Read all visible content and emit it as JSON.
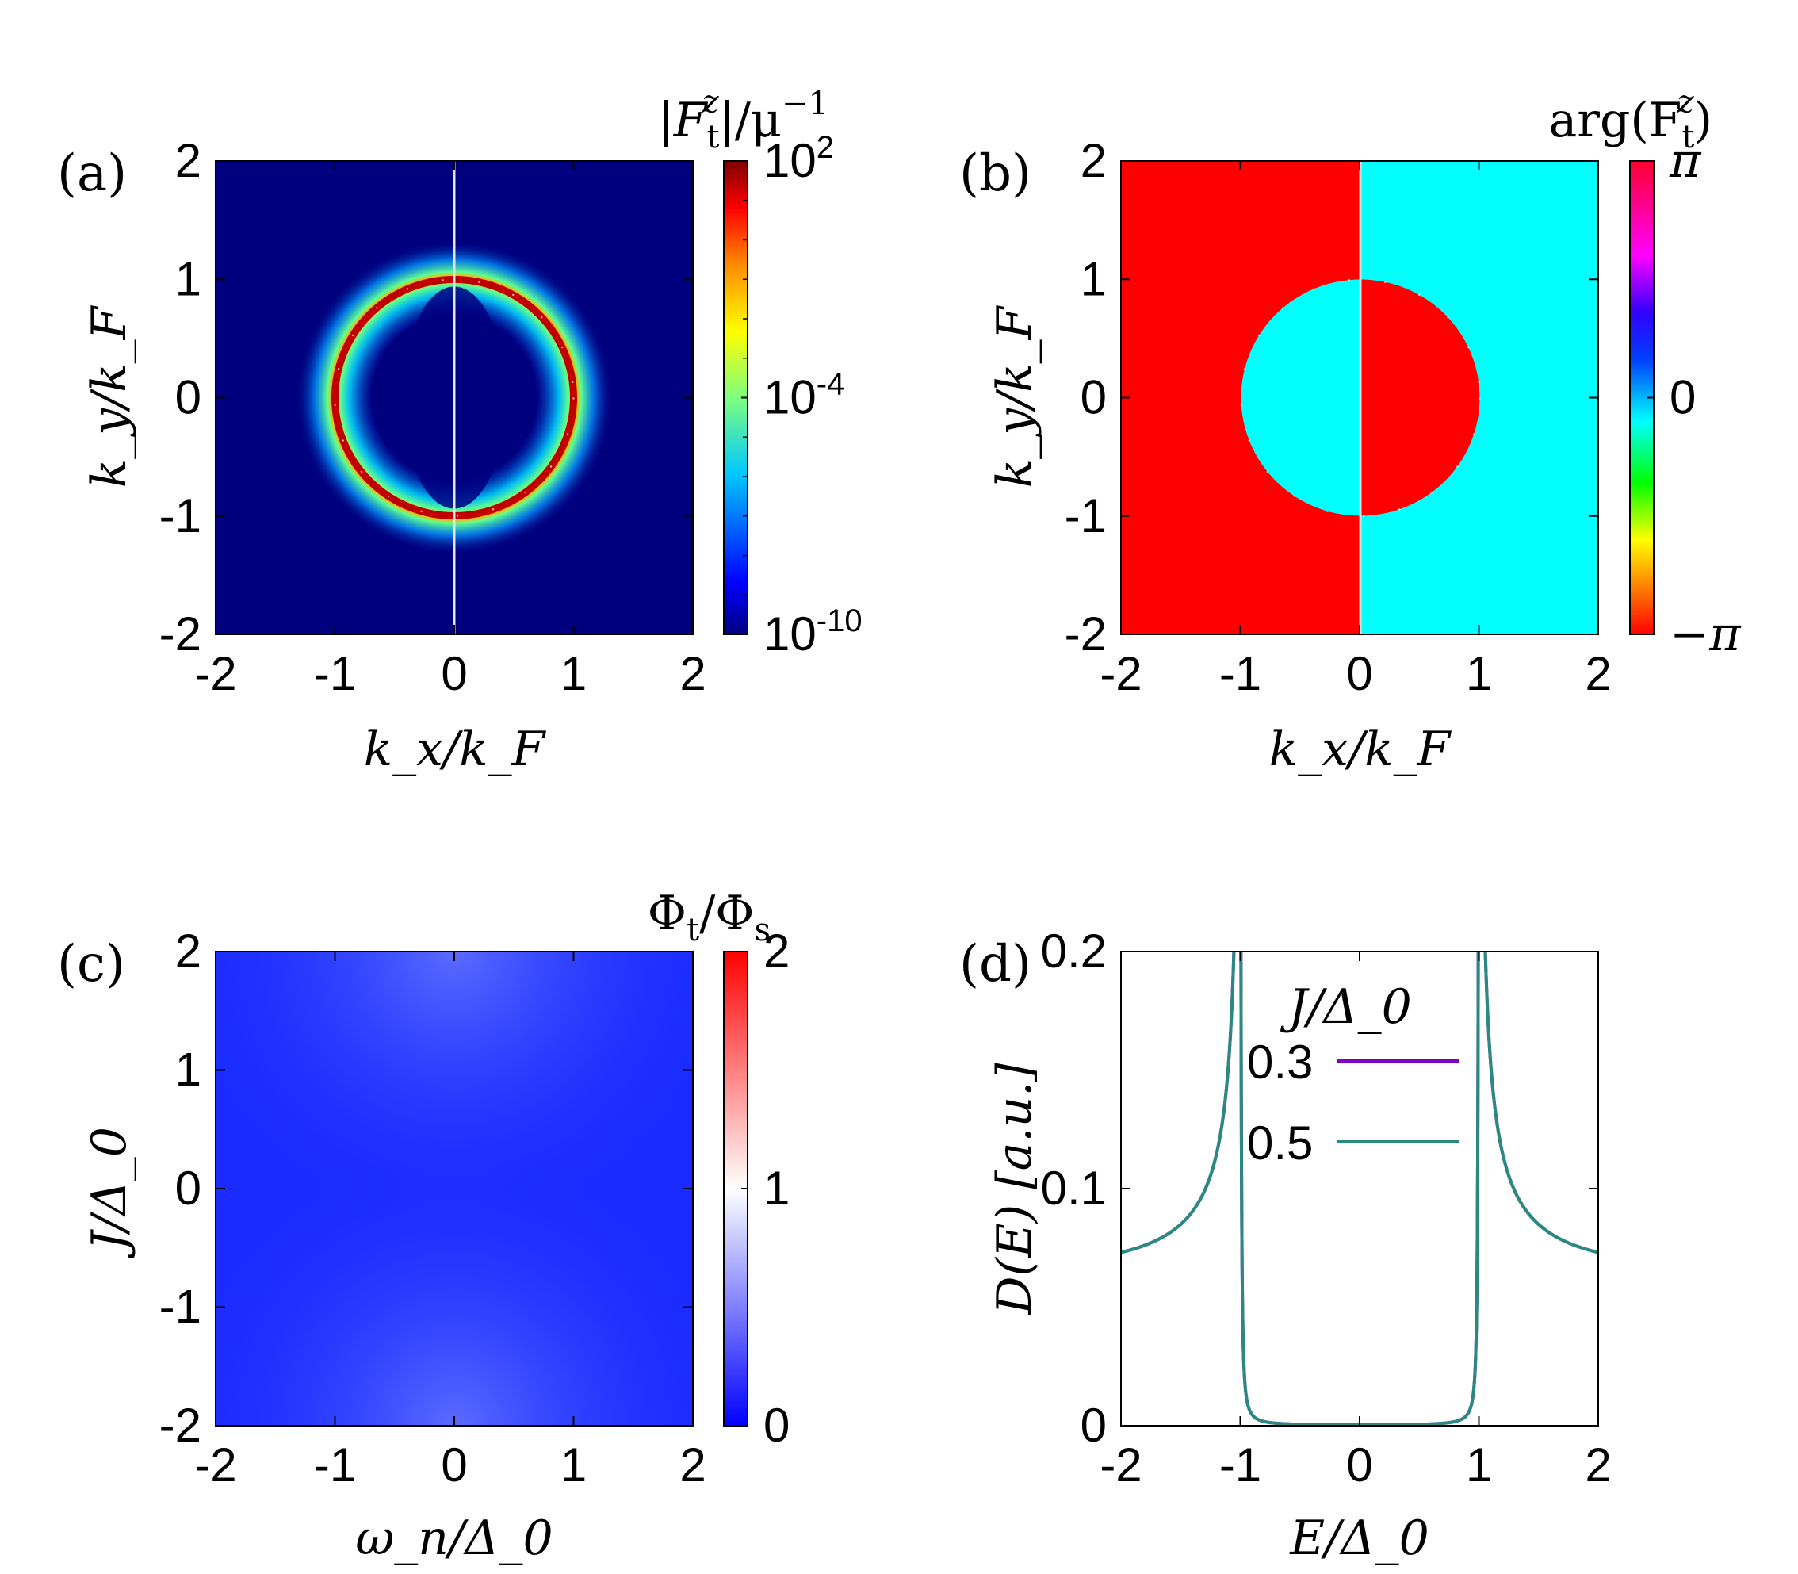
{
  "colors": {
    "a_background": "#00007f",
    "a_ring": "#c00000",
    "b_left": "#ff0000",
    "b_right": "#00ffff",
    "c_fill": "#1a2bff",
    "d_line_03": "#7f00bf",
    "d_line_05": "#2a8a80",
    "divider": "#e6e6e6"
  },
  "chart_data": [
    {
      "panel": "(a)",
      "type": "heatmap",
      "title": "|F_t^z|/μ⁻¹",
      "title_parts": {
        "base": "|F",
        "sub": "t",
        "sup": "z",
        "mid": "|/μ",
        "exp": "−1"
      },
      "xlabel": "k_x/k_F",
      "ylabel": "k_y/k_F",
      "xlim": [
        -2,
        2
      ],
      "ylim": [
        -2,
        2
      ],
      "xticks": [
        "-2",
        "-1",
        "0",
        "1",
        "2"
      ],
      "yticks": [
        "2",
        "1",
        "0",
        "-1",
        "-2"
      ],
      "colorbar": {
        "scale": "log",
        "range": [
          1e-10,
          100
        ],
        "tick_labels": [
          {
            "base": "10",
            "exp": "2"
          },
          {
            "base": "10",
            "exp": "-4"
          },
          {
            "base": "10",
            "exp": "-10"
          }
        ]
      },
      "features": {
        "ring_radius": 1.0,
        "ring_value": 100,
        "halo_value": 0.0001,
        "background_value": 1e-10
      }
    },
    {
      "panel": "(b)",
      "type": "heatmap",
      "title": "arg(F_t^z)",
      "title_parts": {
        "base": "arg(F",
        "sub": "t",
        "sup": "z",
        "end": ")"
      },
      "xlabel": "k_x/k_F",
      "ylabel": "k_y/k_F",
      "xlim": [
        -2,
        2
      ],
      "ylim": [
        -2,
        2
      ],
      "xticks": [
        "-2",
        "-1",
        "0",
        "1",
        "2"
      ],
      "yticks": [
        "2",
        "1",
        "0",
        "-1",
        "-2"
      ],
      "colorbar": {
        "scale": "linear",
        "range": [
          "−π",
          "π"
        ],
        "tick_labels": [
          "π",
          "0",
          "−π"
        ]
      },
      "regions": {
        "outer_left": "−π",
        "outer_right": "0",
        "inner_left": "0",
        "inner_right": "−π",
        "circle_radius": 1.0
      }
    },
    {
      "panel": "(c)",
      "type": "heatmap",
      "title": "Φ_t/Φ_s",
      "title_parts": {
        "base": "Φ",
        "sub": "t",
        "mid": "/Φ",
        "sub2": "s"
      },
      "xlabel": "ω_n/Δ_0",
      "ylabel": "J/Δ_0",
      "xlim": [
        -2,
        2
      ],
      "ylim": [
        -2,
        2
      ],
      "xticks": [
        "-2",
        "-1",
        "0",
        "1",
        "2"
      ],
      "yticks": [
        "2",
        "1",
        "0",
        "-1",
        "-2"
      ],
      "colorbar": {
        "scale": "linear",
        "range": [
          0,
          2
        ],
        "tick_labels": [
          "2",
          "1",
          "0"
        ]
      },
      "features": {
        "typical_value": 0.05
      }
    },
    {
      "panel": "(d)",
      "type": "line",
      "xlabel": "E/Δ_0",
      "ylabel": "D(E) [a.u.]",
      "xlim": [
        -2,
        2
      ],
      "ylim": [
        0,
        0.2
      ],
      "xticks": [
        "-2",
        "-1",
        "0",
        "1",
        "2"
      ],
      "yticks": [
        "0.2",
        "0.1",
        "0"
      ],
      "legend_title": "J/Δ_0",
      "legend_position": "top-center",
      "gap": 1.0,
      "broadening": 0.006,
      "series": [
        {
          "name": "0.3",
          "note": "hidden beneath 0.5 curve"
        },
        {
          "name": "0.5"
        }
      ]
    }
  ]
}
